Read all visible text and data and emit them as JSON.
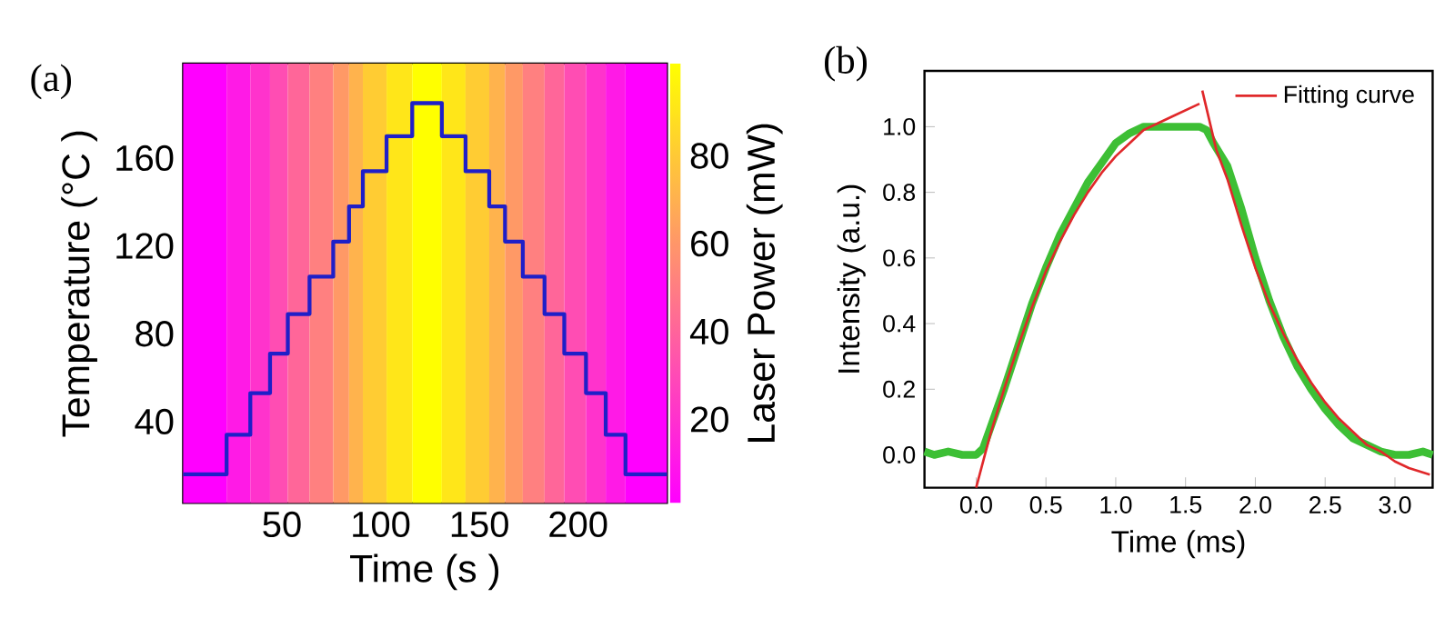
{
  "chart_data": [
    {
      "type": "step",
      "xlabel": "Time (s )",
      "ylabel": "Temperature (°C )",
      "clabel": "Laser Power (mW)",
      "annotations": [
        "(a)"
      ],
      "x": [
        0,
        22,
        34,
        44,
        53,
        64,
        76,
        84,
        91,
        103,
        116,
        131,
        143,
        155,
        163,
        172,
        183,
        193,
        204,
        214,
        224,
        245
      ],
      "values": [
        16,
        34,
        53,
        71,
        89,
        106,
        122,
        138,
        154,
        170,
        185,
        170,
        154,
        138,
        122,
        106,
        89,
        71,
        53,
        34,
        16,
        16
      ],
      "color": "#1f1fc8",
      "xlim": [
        0,
        245
      ],
      "xticks": [
        50,
        100,
        150,
        200
      ],
      "ylim": [
        3,
        203
      ],
      "yticks": [
        40,
        80,
        120,
        160
      ],
      "clim": [
        1,
        101
      ],
      "cticks": [
        20,
        40,
        60,
        80
      ],
      "bands": [
        {
          "axis": "x",
          "from": 0,
          "to": 22,
          "color": "#ff00ff"
        },
        {
          "axis": "x",
          "from": 22,
          "to": 34,
          "color": "#ff1ae6"
        },
        {
          "axis": "x",
          "from": 34,
          "to": 44,
          "color": "#ff33cc"
        },
        {
          "axis": "x",
          "from": 44,
          "to": 53,
          "color": "#ff4db3"
        },
        {
          "axis": "x",
          "from": 53,
          "to": 64,
          "color": "#ff6699"
        },
        {
          "axis": "x",
          "from": 64,
          "to": 76,
          "color": "#ff8080"
        },
        {
          "axis": "x",
          "from": 76,
          "to": 84,
          "color": "#ff9966"
        },
        {
          "axis": "x",
          "from": 84,
          "to": 91,
          "color": "#ffb34d"
        },
        {
          "axis": "x",
          "from": 91,
          "to": 103,
          "color": "#ffcc33"
        },
        {
          "axis": "x",
          "from": 103,
          "to": 116,
          "color": "#ffe619"
        },
        {
          "axis": "x",
          "from": 116,
          "to": 131,
          "color": "#ffff00"
        },
        {
          "axis": "x",
          "from": 131,
          "to": 143,
          "color": "#ffe619"
        },
        {
          "axis": "x",
          "from": 143,
          "to": 155,
          "color": "#ffcc33"
        },
        {
          "axis": "x",
          "from": 155,
          "to": 163,
          "color": "#ffb34d"
        },
        {
          "axis": "x",
          "from": 163,
          "to": 172,
          "color": "#ff9966"
        },
        {
          "axis": "x",
          "from": 172,
          "to": 183,
          "color": "#ff8080"
        },
        {
          "axis": "x",
          "from": 183,
          "to": 193,
          "color": "#ff6699"
        },
        {
          "axis": "x",
          "from": 193,
          "to": 204,
          "color": "#ff4db3"
        },
        {
          "axis": "x",
          "from": 204,
          "to": 214,
          "color": "#ff33cc"
        },
        {
          "axis": "x",
          "from": 214,
          "to": 224,
          "color": "#ff1ae6"
        },
        {
          "axis": "x",
          "from": 224,
          "to": 245,
          "color": "#ff00ff"
        }
      ]
    },
    {
      "type": "line",
      "xlabel": "Time (ms)",
      "ylabel": "Intensity (a.u.)",
      "annotations": [
        "(b)"
      ],
      "legend": "top right",
      "xlim": [
        -0.37,
        3.27
      ],
      "xticks": [
        {
          "value": 0,
          "label": "0.0"
        },
        0.5,
        {
          "value": 1,
          "label": "1.0"
        },
        1.5,
        {
          "value": 2,
          "label": "2.0"
        },
        2.5,
        {
          "value": 3,
          "label": "3.0"
        }
      ],
      "ylim": [
        -0.1,
        1.17
      ],
      "yticks": [
        {
          "value": 0,
          "label": "0.0"
        },
        0.2,
        0.4,
        0.6,
        0.8,
        {
          "value": 1,
          "label": "1.0"
        }
      ],
      "series": [
        {
          "color": "#3dbf35",
          "x": [
            -0.37,
            -0.3,
            -0.2,
            -0.1,
            0.0,
            0.05,
            0.1,
            0.2,
            0.3,
            0.4,
            0.5,
            0.6,
            0.7,
            0.8,
            0.9,
            1.0,
            1.1,
            1.2,
            1.3,
            1.4,
            1.5,
            1.6,
            1.65,
            1.7,
            1.8,
            1.9,
            2.0,
            2.1,
            2.2,
            2.3,
            2.4,
            2.5,
            2.6,
            2.7,
            2.8,
            2.9,
            3.0,
            3.1,
            3.2,
            3.27
          ],
          "values": [
            0.01,
            0.0,
            0.01,
            0.0,
            0.0,
            0.02,
            0.08,
            0.2,
            0.33,
            0.46,
            0.57,
            0.67,
            0.75,
            0.83,
            0.89,
            0.95,
            0.98,
            1.0,
            1.0,
            1.0,
            1.0,
            1.0,
            0.99,
            0.95,
            0.88,
            0.75,
            0.6,
            0.47,
            0.36,
            0.27,
            0.2,
            0.14,
            0.09,
            0.05,
            0.03,
            0.01,
            0.0,
            0.0,
            0.01,
            0.0
          ]
        },
        {
          "name": "Fitting curve",
          "color": "#e0282a",
          "x": [
            0.0,
            0.1,
            0.2,
            0.3,
            0.4,
            0.5,
            0.6,
            0.7,
            0.8,
            0.9,
            1.0,
            1.1,
            1.2,
            1.3,
            1.4,
            1.5,
            1.6,
            1.61,
            1.62,
            1.72,
            1.8,
            1.9,
            2.0,
            2.1,
            2.2,
            2.3,
            2.4,
            2.5,
            2.6,
            2.7,
            2.8,
            2.9,
            3.0,
            3.1,
            3.25
          ],
          "values": [
            -0.1,
            0.06,
            0.2,
            0.33,
            0.45,
            0.56,
            0.65,
            0.73,
            0.8,
            0.86,
            0.91,
            0.95,
            0.99,
            1.01,
            1.03,
            1.05,
            1.07,
            null,
            1.11,
            0.93,
            0.84,
            0.7,
            0.57,
            0.46,
            0.37,
            0.29,
            0.22,
            0.16,
            0.11,
            0.07,
            0.03,
            0.01,
            -0.02,
            -0.04,
            -0.06
          ]
        }
      ]
    }
  ]
}
